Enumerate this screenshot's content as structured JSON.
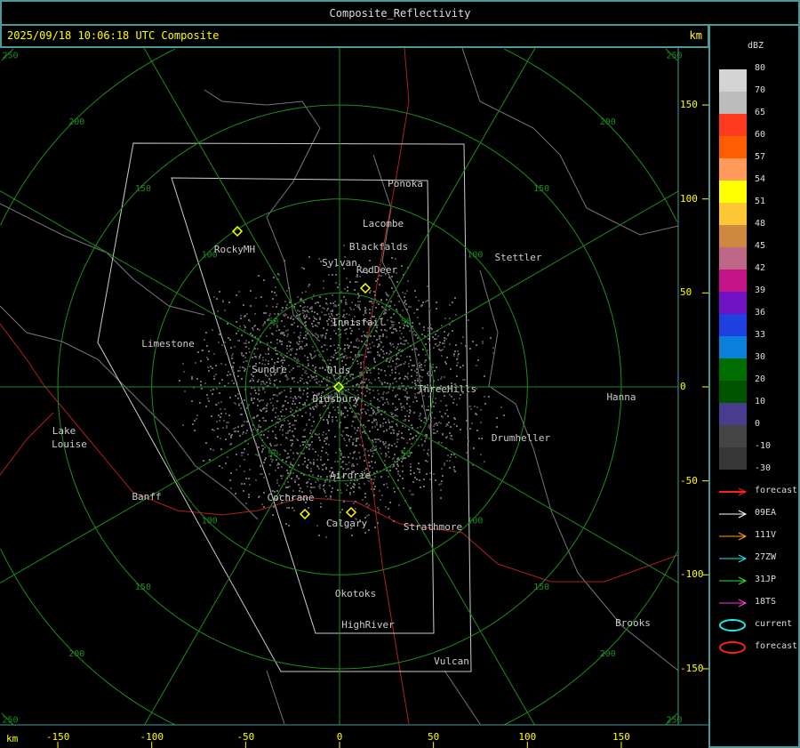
{
  "window": {
    "title": "Composite_Reflectivity"
  },
  "header": {
    "timestamp": "2025/09/18 10:06:18 UTC Composite",
    "units": "km"
  },
  "x_axis": {
    "unit": "km",
    "ticks": [
      "-150",
      "-100",
      "-50",
      "0",
      "50",
      "100",
      "150"
    ]
  },
  "y_axis": {
    "ticks": [
      "150",
      "100",
      "50",
      "0",
      "-50",
      "-100",
      "-150"
    ]
  },
  "range_rings": [
    "50",
    "100",
    "150",
    "200",
    "250"
  ],
  "towns": [
    "Ponoka",
    "Lacombe",
    "Blackfalds",
    "Sylvan",
    "RedDeer",
    "RockyMH",
    "Stettler",
    "Innisfail",
    "Limestone",
    "Sundre",
    "Olds",
    "Didsbury",
    "ThreeHills",
    "Hanna",
    "Lake",
    "Louise",
    "Drumheller",
    "Airdrie",
    "Banff",
    "Cochrane",
    "Calgary",
    "Strathmore",
    "Okotoks",
    "HighRiver",
    "Vulcan",
    "Brooks"
  ],
  "legend": {
    "unit": "dBZ",
    "labels": [
      "80",
      "70",
      "65",
      "60",
      "57",
      "54",
      "51",
      "48",
      "45",
      "42",
      "39",
      "36",
      "33",
      "30",
      "20",
      "10",
      "0",
      "-10",
      "-30"
    ],
    "colors": [
      "#d4d4d4",
      "#bcbcbc",
      "#ff3a1e",
      "#ff5e00",
      "#ff9a5a",
      "#ffff00",
      "#fcc635",
      "#cf8840",
      "#bf6787",
      "#c41488",
      "#6e12c4",
      "#1e40e0",
      "#0a80dc",
      "#006e00",
      "#005400",
      "#4a3c8c",
      "#444444",
      "#363636"
    ],
    "tracks": [
      {
        "label": "forecast",
        "color": "#ff1e1e"
      },
      {
        "label": "09EA",
        "color": "#ffffff"
      },
      {
        "label": "111V",
        "color": "#ffa01e"
      },
      {
        "label": "27ZW",
        "color": "#1ee6f0"
      },
      {
        "label": "31JP",
        "color": "#28e628"
      },
      {
        "label": "18TS",
        "color": "#ff3cdc"
      }
    ],
    "cells": [
      {
        "label": "current",
        "color": "#1ee6f0"
      },
      {
        "label": "forecast",
        "color": "#ff1e1e"
      }
    ]
  }
}
